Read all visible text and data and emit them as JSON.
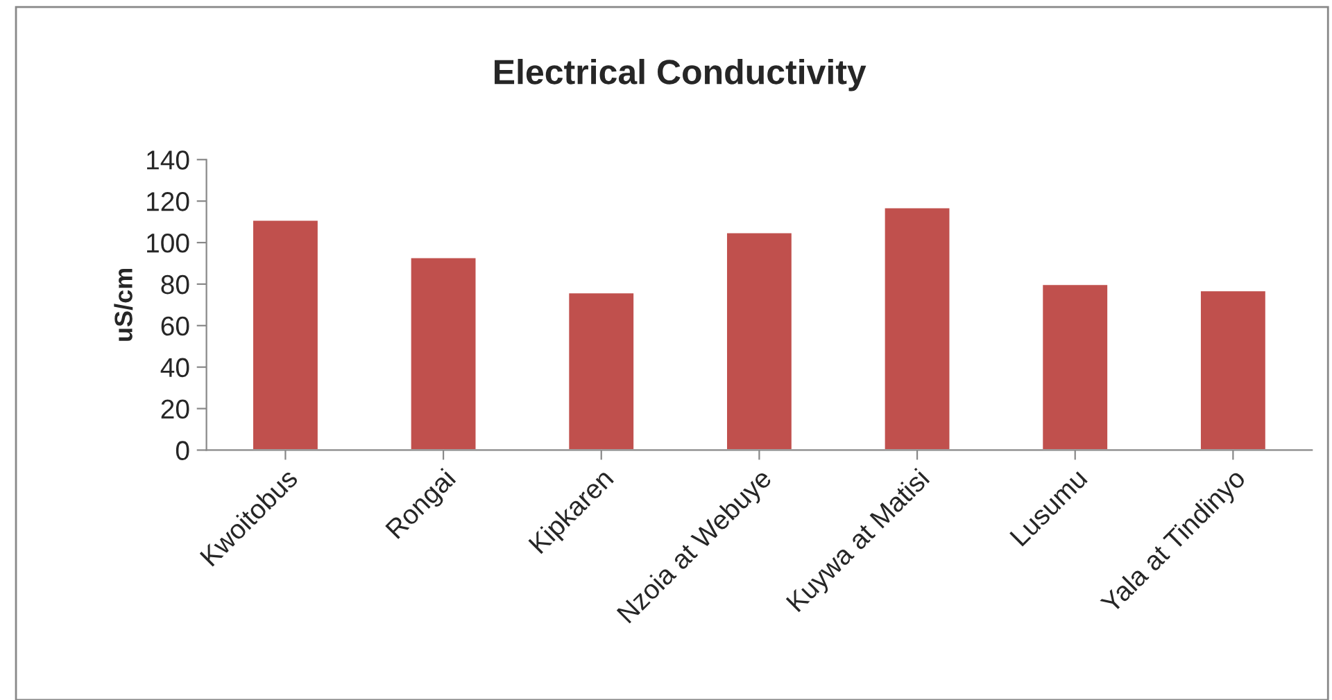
{
  "chart_data": {
    "type": "bar",
    "title": "Electrical Conductivity",
    "ylabel": "uS/cm",
    "categories": [
      "Kwoitobus",
      "Rongai",
      "Kipkaren",
      "Nzoia at Webuye",
      "Kuywa at Matisi",
      "Lusumu",
      "Yala at Tindinyo"
    ],
    "values": [
      111,
      93,
      76,
      105,
      117,
      80,
      77
    ],
    "color": "#c0504d",
    "ylim": [
      0,
      140
    ],
    "yticks": [
      0,
      20,
      40,
      60,
      80,
      100,
      120,
      140
    ],
    "grid": false,
    "legend": false
  }
}
